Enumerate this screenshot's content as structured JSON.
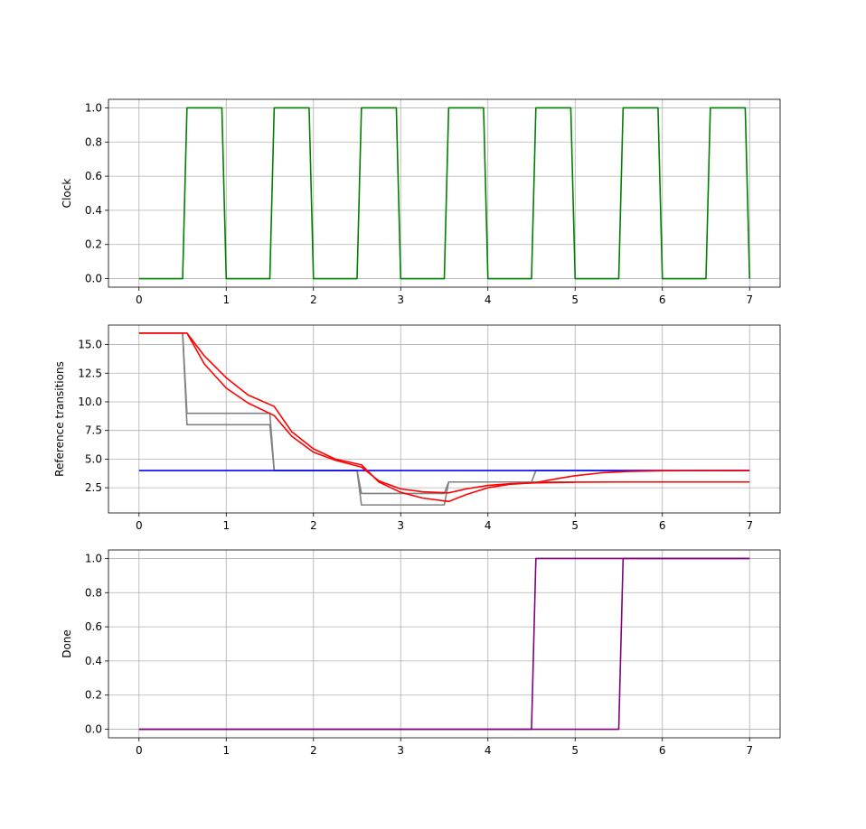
{
  "chart_data": [
    {
      "type": "line",
      "ylabel": "Clock",
      "xlim": [
        -0.35,
        7.35
      ],
      "ylim": [
        -0.05,
        1.05
      ],
      "xticks": [
        "0",
        "1",
        "2",
        "3",
        "4",
        "5",
        "6",
        "7"
      ],
      "yticks": [
        "0.0",
        "0.2",
        "0.4",
        "0.6",
        "0.8",
        "1.0"
      ],
      "grid": true,
      "series": [
        {
          "color": "#008000",
          "x": [
            0,
            0.5,
            0.55,
            0.95,
            1.0,
            1.5,
            1.55,
            1.95,
            2.0,
            2.5,
            2.55,
            2.95,
            3.0,
            3.5,
            3.55,
            3.95,
            4.0,
            4.5,
            4.55,
            4.95,
            5.0,
            5.5,
            5.55,
            5.95,
            6.0,
            6.5,
            6.55,
            6.95,
            7.0
          ],
          "y": [
            0,
            0,
            1,
            1,
            0,
            0,
            1,
            1,
            0,
            0,
            1,
            1,
            0,
            0,
            1,
            1,
            0,
            0,
            1,
            1,
            0,
            0,
            1,
            1,
            0,
            0,
            1,
            1,
            0
          ]
        }
      ]
    },
    {
      "type": "line",
      "ylabel": "Reference transitions",
      "xlim": [
        -0.35,
        7.35
      ],
      "ylim": [
        0.3,
        16.7
      ],
      "xticks": [
        "0",
        "1",
        "2",
        "3",
        "4",
        "5",
        "6",
        "7"
      ],
      "yticks": [
        "2.5",
        "5.0",
        "7.5",
        "10.0",
        "12.5",
        "15.0"
      ],
      "grid": true,
      "series": [
        {
          "color": "#808080",
          "x": [
            0,
            0.5,
            0.55,
            1.5,
            1.55,
            2.5,
            2.55,
            3.5,
            3.55,
            4.5,
            4.55,
            7.0
          ],
          "y": [
            16,
            16,
            8,
            8,
            4,
            4,
            2,
            2,
            3,
            3,
            3,
            3
          ]
        },
        {
          "color": "#808080",
          "x": [
            0,
            0.5,
            0.55,
            1.5,
            1.55,
            2.5,
            2.55,
            3.5,
            3.55,
            4.5,
            4.55,
            7.0
          ],
          "y": [
            16,
            16,
            9,
            9,
            4,
            4,
            1,
            1,
            3,
            3,
            4,
            4
          ]
        },
        {
          "color": "#0000ff",
          "x": [
            0,
            7.0
          ],
          "y": [
            4,
            4
          ]
        },
        {
          "color": "#ff0000",
          "x": [
            0,
            0.55,
            0.75,
            1.0,
            1.25,
            1.55,
            1.75,
            2.0,
            2.25,
            2.55,
            2.75,
            3.0,
            3.25,
            3.55,
            3.75,
            4.0,
            4.25,
            4.55,
            5.0,
            5.5,
            6.0,
            7.0
          ],
          "y": [
            16,
            16,
            13.3,
            11.2,
            9.9,
            8.8,
            7.0,
            5.6,
            4.9,
            4.3,
            3.1,
            2.4,
            2.15,
            2.05,
            2.4,
            2.7,
            2.85,
            2.93,
            2.98,
            3.0,
            3.0,
            3.0
          ]
        },
        {
          "color": "#ff0000",
          "x": [
            0,
            0.55,
            0.75,
            1.0,
            1.25,
            1.55,
            1.75,
            2.0,
            2.25,
            2.55,
            2.75,
            3.0,
            3.25,
            3.55,
            3.75,
            4.0,
            4.25,
            4.55,
            4.8,
            5.0,
            5.3,
            5.6,
            6.0,
            7.0
          ],
          "y": [
            16,
            16,
            14.0,
            12.1,
            10.6,
            9.6,
            7.4,
            5.9,
            5.0,
            4.5,
            3.0,
            2.1,
            1.6,
            1.3,
            1.9,
            2.5,
            2.8,
            2.95,
            3.3,
            3.55,
            3.8,
            3.92,
            3.98,
            4.0
          ]
        }
      ]
    },
    {
      "type": "line",
      "ylabel": "Done",
      "xlim": [
        -0.35,
        7.35
      ],
      "ylim": [
        -0.05,
        1.05
      ],
      "xticks": [
        "0",
        "1",
        "2",
        "3",
        "4",
        "5",
        "6",
        "7"
      ],
      "yticks": [
        "0.0",
        "0.2",
        "0.4",
        "0.6",
        "0.8",
        "1.0"
      ],
      "grid": true,
      "series": [
        {
          "color": "#800080",
          "x": [
            0,
            4.5,
            4.55,
            7.0
          ],
          "y": [
            0,
            0,
            1,
            1
          ]
        },
        {
          "color": "#800080",
          "x": [
            0,
            5.5,
            5.55,
            7.0
          ],
          "y": [
            0,
            0,
            1,
            1
          ]
        }
      ]
    }
  ]
}
